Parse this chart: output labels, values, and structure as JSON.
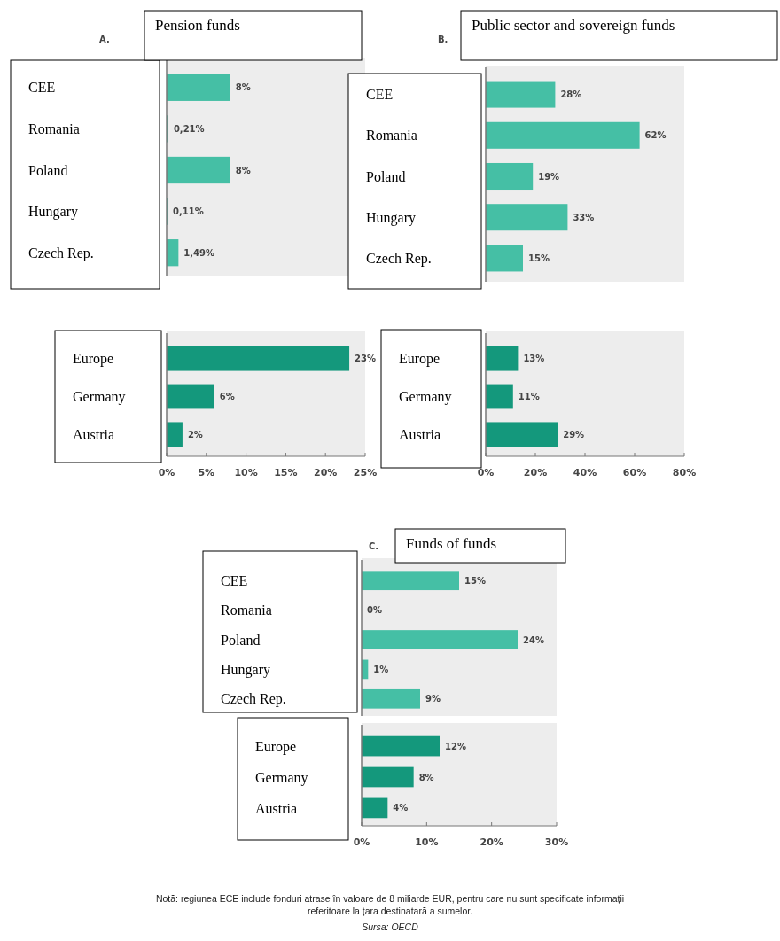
{
  "chart_data": [
    {
      "type": "bar",
      "orientation": "horizontal",
      "title": "Pension funds",
      "annotations": [
        "A."
      ],
      "categories": [
        "CEE",
        "Romania",
        "Poland",
        "Hungary",
        "Czech Rep."
      ],
      "values": [
        8,
        0.21,
        8,
        0.11,
        1.49
      ],
      "value_labels": [
        "8%",
        "0,21%",
        "8%",
        "0,11%",
        "1,49%"
      ],
      "color": "#45bfa5",
      "xlim": [
        0,
        25
      ],
      "tick_labels": "y",
      "grid": false
    },
    {
      "type": "bar",
      "orientation": "horizontal",
      "categories": [
        "Europe",
        "Germany",
        "Austria"
      ],
      "values": [
        23,
        6,
        2
      ],
      "value_labels": [
        "23%",
        "6%",
        "2%"
      ],
      "color": "#14987c",
      "xlim": [
        0,
        25
      ],
      "xticks": [
        {
          "value": 0,
          "label": "0%"
        },
        {
          "value": 5,
          "label": "5%"
        },
        {
          "value": 10,
          "label": "10%"
        },
        {
          "value": 15,
          "label": "15%"
        },
        {
          "value": 20,
          "label": "20%"
        },
        {
          "value": 25,
          "label": "25%"
        }
      ],
      "grid": false
    },
    {
      "type": "bar",
      "orientation": "horizontal",
      "title": "Public sector and sovereign funds",
      "annotations": [
        "B."
      ],
      "categories": [
        "CEE",
        "Romania",
        "Poland",
        "Hungary",
        "Czech Rep."
      ],
      "values": [
        28,
        62,
        19,
        33,
        15
      ],
      "value_labels": [
        "28%",
        "62%",
        "19%",
        "33%",
        "15%"
      ],
      "color": "#45bfa5",
      "xlim": [
        0,
        80
      ],
      "tick_labels": "y",
      "grid": false
    },
    {
      "type": "bar",
      "orientation": "horizontal",
      "categories": [
        "Europe",
        "Germany",
        "Austria"
      ],
      "values": [
        13,
        11,
        29
      ],
      "value_labels": [
        "13%",
        "11%",
        "29%"
      ],
      "color": "#14987c",
      "xlim": [
        0,
        80
      ],
      "xticks": [
        {
          "value": 0,
          "label": "0%"
        },
        {
          "value": 20,
          "label": "20%"
        },
        {
          "value": 40,
          "label": "40%"
        },
        {
          "value": 60,
          "label": "60%"
        },
        {
          "value": 80,
          "label": "80%"
        }
      ],
      "grid": false
    },
    {
      "type": "bar",
      "orientation": "horizontal",
      "title": "Funds of funds",
      "annotations": [
        "C."
      ],
      "categories": [
        "CEE",
        "Romania",
        "Poland",
        "Hungary",
        "Czech Rep."
      ],
      "values": [
        15,
        0,
        24,
        1,
        9
      ],
      "value_labels": [
        "15%",
        "0%",
        "24%",
        "1%",
        "9%"
      ],
      "color": "#45bfa5",
      "xlim": [
        0,
        30
      ],
      "tick_labels": "y",
      "grid": false
    },
    {
      "type": "bar",
      "orientation": "horizontal",
      "categories": [
        "Europe",
        "Germany",
        "Austria"
      ],
      "values": [
        12,
        8,
        4
      ],
      "value_labels": [
        "12%",
        "8%",
        "4%"
      ],
      "color": "#14987c",
      "xlim": [
        0,
        30
      ],
      "xticks": [
        {
          "value": 0,
          "label": "0%"
        },
        {
          "value": 10,
          "label": "10%"
        },
        {
          "value": 20,
          "label": "20%"
        },
        {
          "value": 30,
          "label": "30%"
        }
      ],
      "grid": false,
      "annotations": [
        "Notă: regiunea ECE include fonduri atrase în valoare de 8 miliarde EUR, pentru care nu sunt specificate informații referitoare la țara destinatară a sumelor.",
        "Sursa: OECD"
      ]
    }
  ]
}
